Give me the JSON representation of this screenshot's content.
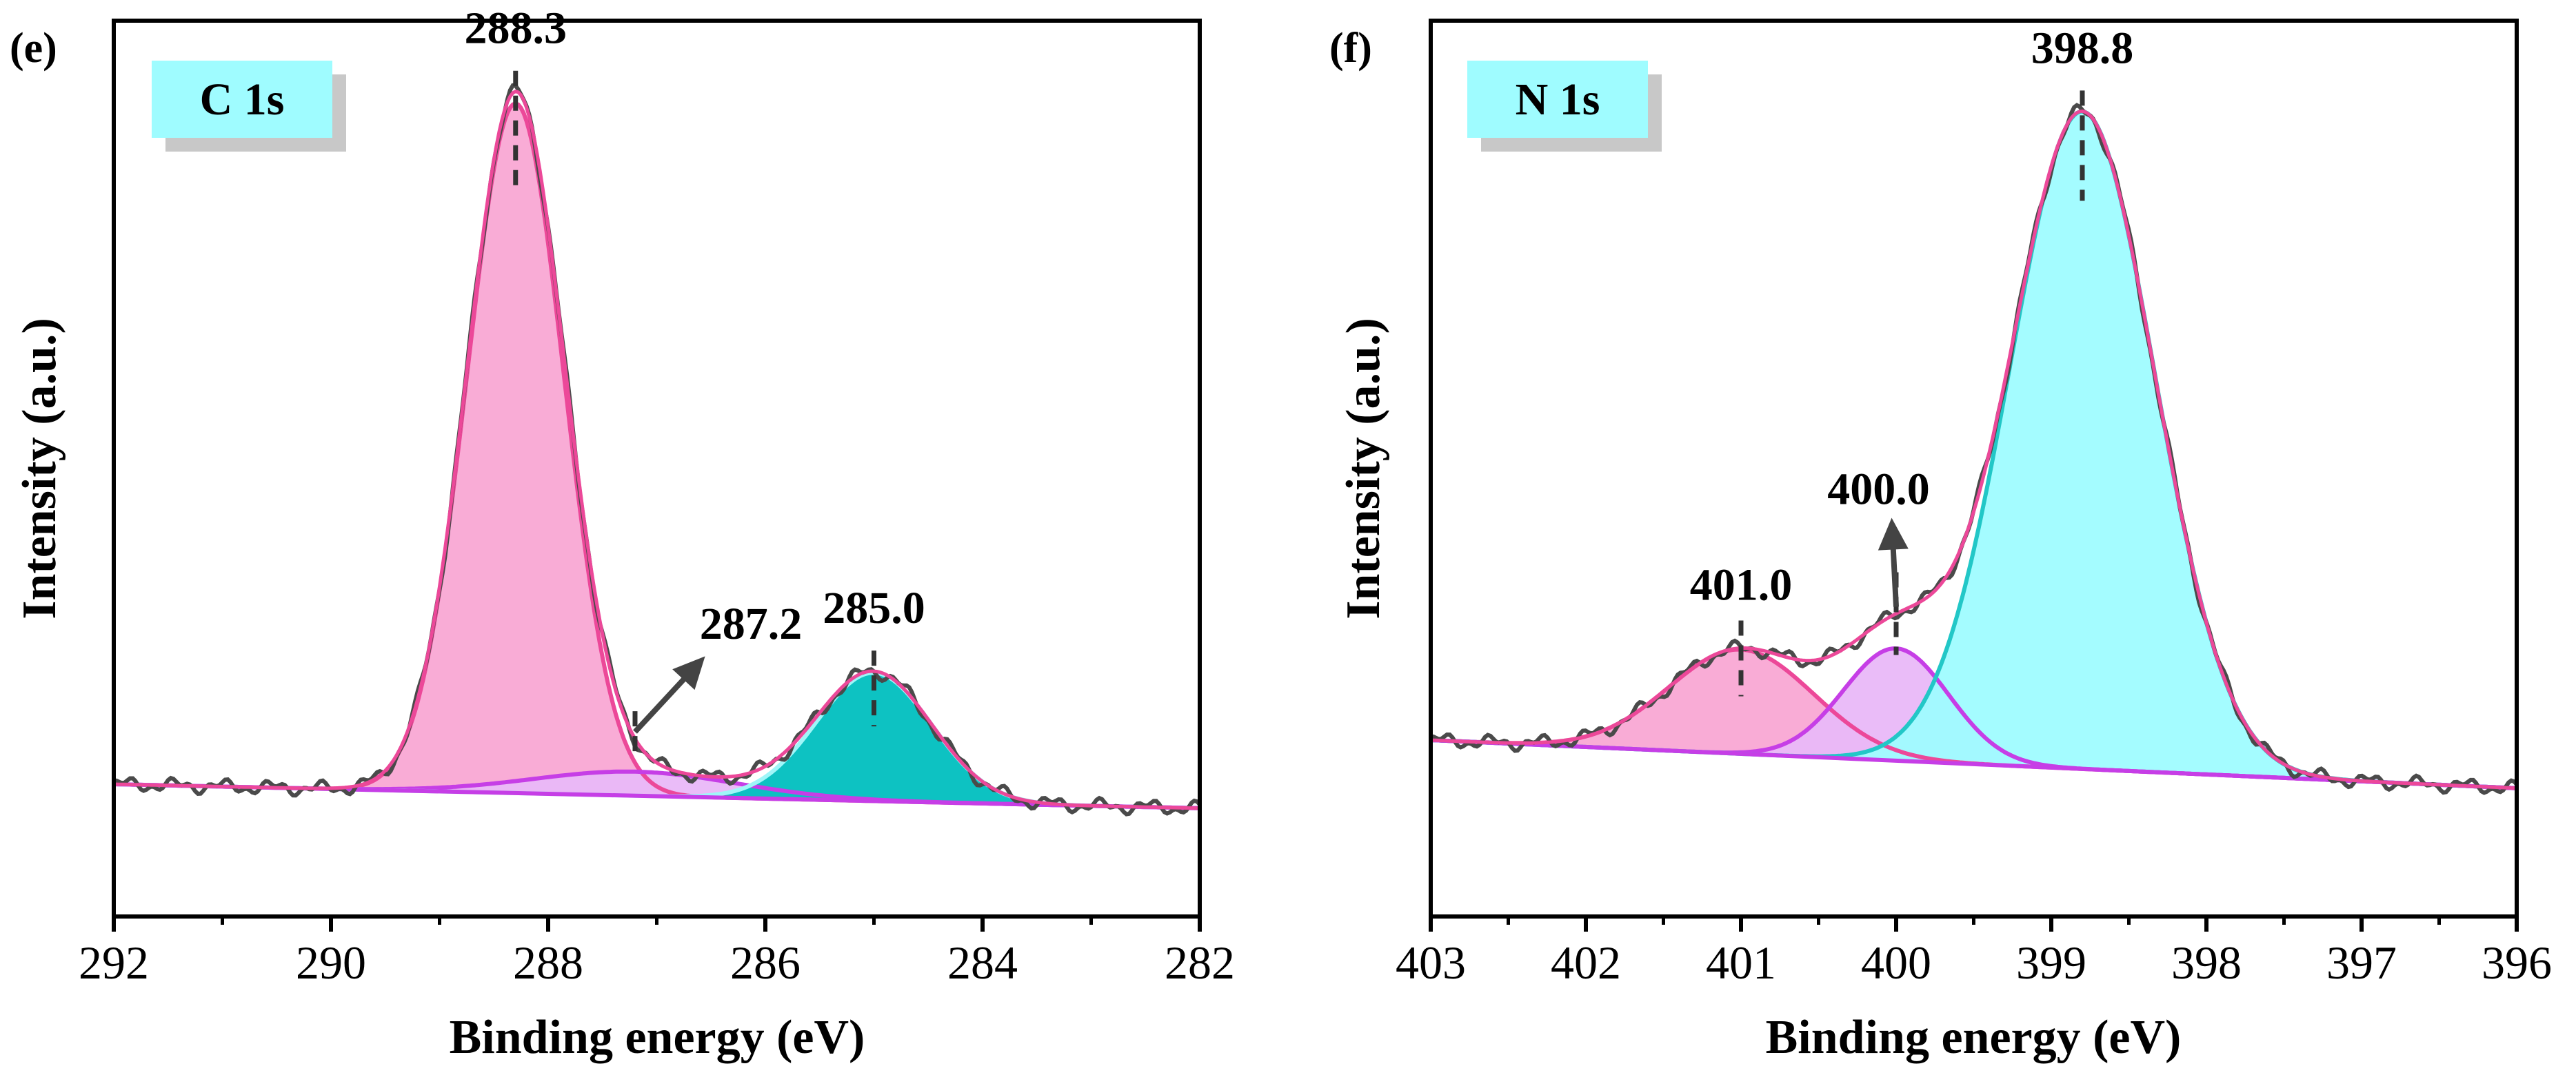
{
  "chart_data": [
    {
      "panel_label": "(e)",
      "type": "line",
      "title": "C 1s",
      "xlabel": "Binding energy (eV)",
      "ylabel": "Intensity (a.u.)",
      "xlim": [
        292,
        282
      ],
      "x_reversed": true,
      "x_ticks": [
        292,
        290,
        288,
        286,
        284,
        282
      ],
      "x_tick_labels": [
        "292",
        "290",
        "288",
        "286",
        "284",
        "282"
      ],
      "y_units": "a.u.",
      "ylim": [
        0,
        1.1
      ],
      "background": {
        "start": [
          292,
          0.165
        ],
        "end": [
          282,
          0.135
        ]
      },
      "peaks": [
        {
          "label": "288.3",
          "center": 288.3,
          "amplitude": 0.86,
          "fwhm": 1.05,
          "fill": "#f9a8d4",
          "stroke": "#ec4899",
          "annotation": "direct"
        },
        {
          "label": "287.2",
          "center": 287.2,
          "amplitude": 0.03,
          "fwhm": 2.2,
          "fill": "#e9b8f8",
          "stroke": "#c63ee6",
          "annotation": "arrow"
        },
        {
          "label": "285.0",
          "center": 285.0,
          "amplitude": 0.16,
          "fwhm": 1.25,
          "fill": "#00bfbf",
          "stroke": "#9ff6f8",
          "annotation": "direct"
        }
      ],
      "colors": {
        "measured": "#4a4a4a",
        "envelope": "#ec4899",
        "label_bg": "#9ffcff",
        "label_shadow": "#c8c8c8",
        "marker": "#333333"
      }
    },
    {
      "panel_label": "(f)",
      "type": "line",
      "title": "N 1s",
      "xlabel": "Binding energy (eV)",
      "ylabel": "Intensity (a.u.)",
      "xlim": [
        403,
        396
      ],
      "x_reversed": true,
      "x_ticks": [
        403,
        402,
        401,
        400,
        399,
        398,
        397,
        396
      ],
      "x_tick_labels": [
        "403",
        "402",
        "401",
        "400",
        "399",
        "398",
        "397",
        "396"
      ],
      "y_units": "a.u.",
      "ylim": [
        0,
        1.1
      ],
      "background": {
        "start": [
          403,
          0.22
        ],
        "end": [
          396,
          0.16
        ]
      },
      "peaks": [
        {
          "label": "401.0",
          "center": 401.0,
          "amplitude": 0.13,
          "fwhm": 1.1,
          "fill": "#f9a8d4",
          "stroke": "#ec4899",
          "annotation": "direct"
        },
        {
          "label": "400.0",
          "center": 400.0,
          "amplitude": 0.14,
          "fwhm": 0.8,
          "fill": "#e9b8f8",
          "stroke": "#c63ee6",
          "annotation": "arrow"
        },
        {
          "label": "398.8",
          "center": 398.8,
          "amplitude": 0.82,
          "fwhm": 1.1,
          "fill": "#9ffcff",
          "stroke": "#22c7c7",
          "annotation": "direct"
        }
      ],
      "colors": {
        "measured": "#4a4a4a",
        "envelope": "#ec4899",
        "label_bg": "#9ffcff",
        "label_shadow": "#c8c8c8",
        "marker": "#333333"
      }
    }
  ]
}
